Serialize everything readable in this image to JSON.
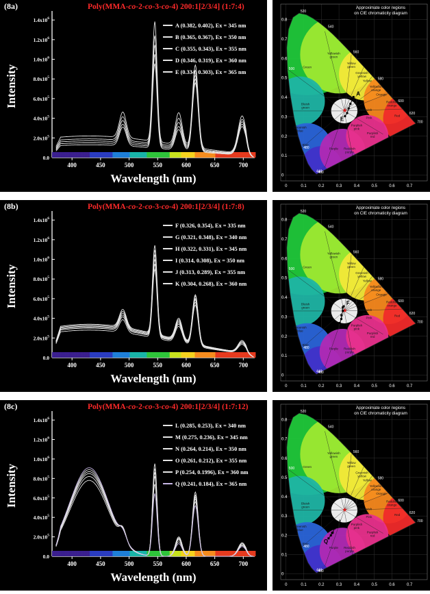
{
  "chart_data": [
    {
      "type": "line",
      "panel_label": "(8a)",
      "title": "Poly(MMA-co-2-co-3-co-4)   200:1[2/3/4]   (1:7:4)",
      "title_parts": {
        "prefix": "Poly(MMA-",
        "co1": "co",
        "mid1": "-2-",
        "co2": "co",
        "mid2": "-3-",
        "co3": "co",
        "suffix": "-4)",
        "feed": "200:1[2/3/4]",
        "ratio": "(1:7:4)"
      },
      "xlabel": "Wavelength (nm)",
      "ylabel": "Intensity",
      "xlim": [
        365,
        720
      ],
      "ylim": [
        0,
        1.45
      ],
      "x_ticks": [
        "400",
        "450",
        "500",
        "550",
        "600",
        "650",
        "700"
      ],
      "x_tick_values": [
        400,
        450,
        500,
        550,
        600,
        650,
        700
      ],
      "y_ticks": [
        {
          "v": 0,
          "m": "0.0",
          "e": ""
        },
        {
          "v": 0.2,
          "m": "2.0x10",
          "e": "5"
        },
        {
          "v": 0.4,
          "m": "4.0x10",
          "e": "5"
        },
        {
          "v": 0.6,
          "m": "6.0x10",
          "e": "5"
        },
        {
          "v": 0.8,
          "m": "8.0x10",
          "e": "5"
        },
        {
          "v": 1.0,
          "m": "1.0x10",
          "e": "6"
        },
        {
          "v": 1.2,
          "m": "1.2x10",
          "e": "6"
        },
        {
          "v": 1.4,
          "m": "1.4x10",
          "e": "6"
        }
      ],
      "legend": [
        {
          "text": "A (0.382, 0.402), Ex = 345 nm",
          "color": "#e6e6e6"
        },
        {
          "text": "B (0.365, 0.367), Ex = 350 nm",
          "color": "#e6e6e6"
        },
        {
          "text": "C (0.355, 0.343), Ex = 355 nm",
          "color": "#e6e6e6"
        },
        {
          "text": "D (0.346, 0.319), Ex = 360 nm",
          "color": "#e6e6e6"
        },
        {
          "text": "E (0.334, 0.303), Ex = 365 nm",
          "color": "#e6e6e6"
        }
      ],
      "series": [
        {
          "name": "A",
          "color": "#e6e6e6",
          "broad": 0.22,
          "bw": 150,
          "peaks": [
            0.26,
            1.22,
            0.33,
            0.84,
            0.38
          ]
        },
        {
          "name": "B",
          "color": "#e6e6e6",
          "broad": 0.19,
          "bw": 150,
          "peaks": [
            0.24,
            1.1,
            0.29,
            0.8,
            0.35
          ]
        },
        {
          "name": "C",
          "color": "#e6e6e6",
          "broad": 0.17,
          "bw": 150,
          "peaks": [
            0.22,
            1.02,
            0.26,
            0.76,
            0.33
          ]
        },
        {
          "name": "D",
          "color": "#e6e6e6",
          "broad": 0.15,
          "bw": 150,
          "peaks": [
            0.2,
            0.94,
            0.23,
            0.73,
            0.31
          ]
        },
        {
          "name": "E",
          "color": "#e6e6e6",
          "broad": 0.13,
          "bw": 150,
          "peaks": [
            0.19,
            0.86,
            0.21,
            0.7,
            0.29
          ]
        }
      ],
      "cie": {
        "points": [
          [
            0.382,
            0.402
          ],
          [
            0.365,
            0.367
          ],
          [
            0.355,
            0.343
          ],
          [
            0.346,
            0.319
          ],
          [
            0.334,
            0.303
          ]
        ],
        "top_label": "A",
        "bottom_label": "E"
      }
    },
    {
      "type": "line",
      "panel_label": "(8b)",
      "title": "Poly(MMA-co-2-co-3-co-4)   200:1[2/3/4]   (1:7:8)",
      "title_parts": {
        "prefix": "Poly(MMA-",
        "co1": "co",
        "mid1": "-2-",
        "co2": "co",
        "mid2": "-3-",
        "co3": "co",
        "suffix": "-4)",
        "feed": "200:1[2/3/4]",
        "ratio": "(1:7:8)"
      },
      "xlabel": "Wavelength (nm)",
      "ylabel": "Intensity",
      "xlim": [
        365,
        720
      ],
      "ylim": [
        0,
        1.45
      ],
      "x_ticks": [
        "400",
        "450",
        "500",
        "550",
        "600",
        "650",
        "700"
      ],
      "x_tick_values": [
        400,
        450,
        500,
        550,
        600,
        650,
        700
      ],
      "y_ticks": [
        {
          "v": 0,
          "m": "0.0",
          "e": ""
        },
        {
          "v": 0.2,
          "m": "2.0x10",
          "e": "5"
        },
        {
          "v": 0.4,
          "m": "4.0x10",
          "e": "5"
        },
        {
          "v": 0.6,
          "m": "6.0x10",
          "e": "5"
        },
        {
          "v": 0.8,
          "m": "8.0x10",
          "e": "5"
        },
        {
          "v": 1.0,
          "m": "1.0x10",
          "e": "6"
        },
        {
          "v": 1.2,
          "m": "1.2x10",
          "e": "6"
        },
        {
          "v": 1.4,
          "m": "1.4x10",
          "e": "6"
        }
      ],
      "legend": [
        {
          "text": "F (0.326, 0.354), Ex = 335 nm",
          "color": "#e6e6e6"
        },
        {
          "text": "G (0.321, 0.348), Ex = 340 nm",
          "color": "#e6e6e6"
        },
        {
          "text": "H (0.322, 0.331), Ex = 345 nm",
          "color": "#e6e6e6"
        },
        {
          "text": "I (0.314, 0.308), Ex = 350 nm",
          "color": "#e6e6e6"
        },
        {
          "text": "J (0.313, 0.289), Ex = 355 nm",
          "color": "#e6e6e6"
        },
        {
          "text": "K (0.304, 0.268), Ex = 360 nm",
          "color": "#e6e6e6"
        }
      ],
      "series": [
        {
          "name": "F",
          "color": "#e6e6e6",
          "broad": 0.34,
          "bw": 140,
          "peaks": [
            0.18,
            0.9,
            0.22,
            0.5,
            0.12
          ]
        },
        {
          "name": "G",
          "color": "#e6e6e6",
          "broad": 0.33,
          "bw": 140,
          "peaks": [
            0.17,
            0.86,
            0.21,
            0.49,
            0.11
          ]
        },
        {
          "name": "H",
          "color": "#e6e6e6",
          "broad": 0.32,
          "bw": 140,
          "peaks": [
            0.16,
            0.82,
            0.2,
            0.47,
            0.11
          ]
        },
        {
          "name": "I",
          "color": "#e6e6e6",
          "broad": 0.31,
          "bw": 140,
          "peaks": [
            0.15,
            0.78,
            0.19,
            0.46,
            0.1
          ]
        },
        {
          "name": "J",
          "color": "#e6e6e6",
          "broad": 0.3,
          "bw": 140,
          "peaks": [
            0.14,
            0.74,
            0.18,
            0.44,
            0.1
          ]
        },
        {
          "name": "K",
          "color": "#e6e6e6",
          "broad": 0.28,
          "bw": 140,
          "peaks": [
            0.13,
            0.7,
            0.17,
            0.42,
            0.09
          ]
        }
      ],
      "cie": {
        "points": [
          [
            0.326,
            0.354
          ],
          [
            0.321,
            0.348
          ],
          [
            0.322,
            0.331
          ],
          [
            0.314,
            0.308
          ],
          [
            0.313,
            0.289
          ],
          [
            0.304,
            0.268
          ]
        ],
        "top_label": "F",
        "bottom_label": "K"
      }
    },
    {
      "type": "line",
      "panel_label": "(8c)",
      "title": "Poly(MMA-co-2-co-3-co-4)   200:1[2/3/4]   (1:7:12)",
      "title_parts": {
        "prefix": "Poly(MMA-",
        "co1": "co",
        "mid1": "-2-",
        "co2": "co",
        "mid2": "-3-",
        "co3": "co",
        "suffix": "-4)",
        "feed": "200:1[2/3/4]",
        "ratio": "(1:7:12)"
      },
      "xlabel": "Wavelength (nm)",
      "ylabel": "Intensity",
      "xlim": [
        365,
        720
      ],
      "ylim": [
        0,
        1.45
      ],
      "x_ticks": [
        "400",
        "450",
        "500",
        "550",
        "600",
        "650",
        "700"
      ],
      "x_tick_values": [
        400,
        450,
        500,
        550,
        600,
        650,
        700
      ],
      "y_ticks": [
        {
          "v": 0,
          "m": "0.0",
          "e": ""
        },
        {
          "v": 0.2,
          "m": "2.0x10",
          "e": "5"
        },
        {
          "v": 0.4,
          "m": "4.0x10",
          "e": "5"
        },
        {
          "v": 0.6,
          "m": "6.0x10",
          "e": "5"
        },
        {
          "v": 0.8,
          "m": "8.0x10",
          "e": "5"
        },
        {
          "v": 1.0,
          "m": "1.0x10",
          "e": "6"
        },
        {
          "v": 1.2,
          "m": "1.2x10",
          "e": "6"
        },
        {
          "v": 1.4,
          "m": "1.4x10",
          "e": "6"
        }
      ],
      "legend": [
        {
          "text": "L (0.285, 0.253), Ex = 340 nm",
          "color": "#e6e6e6"
        },
        {
          "text": "M (0.275, 0.236), Ex = 345 nm",
          "color": "#e6e6e6"
        },
        {
          "text": "N (0.264, 0.214), Ex = 350 nm",
          "color": "#e6e6e6"
        },
        {
          "text": "O (0.261, 0.212), Ex = 355 nm",
          "color": "#e6e6e6"
        },
        {
          "text": "P (0.254, 0.1996), Ex = 360 nm",
          "color": "#e6e6e6"
        },
        {
          "text": "Q (0.241, 0.184), Ex = 365 nm",
          "color": "#c8b8e6"
        }
      ],
      "series": [
        {
          "name": "L",
          "color": "#e6e6e6",
          "broad": 0.78,
          "bw": 34,
          "peaks": [
            0.13,
            0.95,
            0.2,
            0.66,
            0.14
          ]
        },
        {
          "name": "M",
          "color": "#e6e6e6",
          "broad": 0.82,
          "bw": 34,
          "peaks": [
            0.12,
            0.9,
            0.19,
            0.63,
            0.13
          ]
        },
        {
          "name": "N",
          "color": "#e6e6e6",
          "broad": 0.85,
          "bw": 34,
          "peaks": [
            0.11,
            0.86,
            0.18,
            0.61,
            0.12
          ]
        },
        {
          "name": "O",
          "color": "#e6e6e6",
          "broad": 0.87,
          "bw": 34,
          "peaks": [
            0.1,
            0.82,
            0.17,
            0.59,
            0.12
          ]
        },
        {
          "name": "P",
          "color": "#e6e6e6",
          "broad": 0.89,
          "bw": 34,
          "peaks": [
            0.09,
            0.74,
            0.15,
            0.56,
            0.11
          ]
        },
        {
          "name": "Q",
          "color": "#c8b8e6",
          "broad": 0.91,
          "bw": 34,
          "peaks": [
            0.08,
            0.64,
            0.13,
            0.52,
            0.1
          ]
        }
      ],
      "cie": {
        "points": [
          [
            0.285,
            0.253
          ],
          [
            0.275,
            0.236
          ],
          [
            0.264,
            0.214
          ],
          [
            0.261,
            0.212
          ],
          [
            0.254,
            0.1996
          ],
          [
            0.241,
            0.184
          ]
        ],
        "top_label": "L",
        "bottom_label": "Q"
      }
    }
  ],
  "cie_diagram": {
    "caption_line1": "Approximate color regions",
    "caption_line2": "on CIE chromaticity diagram",
    "x_ticks": [
      "0",
      "0.1",
      "0.2",
      "0.3",
      "0.4",
      "0.5",
      "0.6",
      "0.7"
    ],
    "y_ticks": [
      "0",
      "0.1",
      "0.2",
      "0.3",
      "0.4",
      "0.5",
      "0.6",
      "0.7",
      "0.8"
    ],
    "xlim": [
      -0.03,
      0.8
    ],
    "ylim": [
      -0.03,
      0.88
    ],
    "wavelength_labels": [
      {
        "text": "520",
        "x": 0.074,
        "y": 0.834
      },
      {
        "text": "540",
        "x": 0.23,
        "y": 0.754
      },
      {
        "text": "560",
        "x": 0.373,
        "y": 0.624
      },
      {
        "text": "580",
        "x": 0.512,
        "y": 0.487
      },
      {
        "text": "600",
        "x": 0.627,
        "y": 0.372
      },
      {
        "text": "620",
        "x": 0.691,
        "y": 0.308
      },
      {
        "text": "700",
        "x": 0.735,
        "y": 0.265
      },
      {
        "text": "500",
        "x": 0.008,
        "y": 0.538
      },
      {
        "text": "480",
        "x": 0.091,
        "y": 0.133
      },
      {
        "text": "440",
        "x": 0.164,
        "y": 0.011
      },
      {
        "text": "400",
        "x": 0.173,
        "y": 0.005
      }
    ],
    "regions": [
      {
        "text": "Green",
        "x": 0.12,
        "y": 0.55
      },
      {
        "text": "Yellowish green",
        "x": 0.27,
        "y": 0.62
      },
      {
        "text": "Yellow green",
        "x": 0.37,
        "y": 0.57
      },
      {
        "text": "Greenish yellow",
        "x": 0.43,
        "y": 0.52
      },
      {
        "text": "Yellow",
        "x": 0.46,
        "y": 0.48
      },
      {
        "text": "Yellowish orange",
        "x": 0.51,
        "y": 0.45
      },
      {
        "text": "Orange",
        "x": 0.54,
        "y": 0.41
      },
      {
        "text": "Reddish orange",
        "x": 0.6,
        "y": 0.37
      },
      {
        "text": "Bluish green",
        "x": 0.11,
        "y": 0.36
      },
      {
        "text": "Yellowish pink",
        "x": 0.45,
        "y": 0.33
      },
      {
        "text": "Pink",
        "x": 0.47,
        "y": 0.29
      },
      {
        "text": "Red",
        "x": 0.63,
        "y": 0.3
      },
      {
        "text": "Purplish pink",
        "x": 0.4,
        "y": 0.25
      },
      {
        "text": "Greenish blue",
        "x": 0.08,
        "y": 0.24
      },
      {
        "text": "Purplish red",
        "x": 0.49,
        "y": 0.21
      },
      {
        "text": "Blue",
        "x": 0.11,
        "y": 0.15
      },
      {
        "text": "Purple",
        "x": 0.27,
        "y": 0.13
      },
      {
        "text": "Reddish purple",
        "x": 0.36,
        "y": 0.13
      }
    ],
    "white_point": [
      0.333,
      0.333
    ]
  }
}
